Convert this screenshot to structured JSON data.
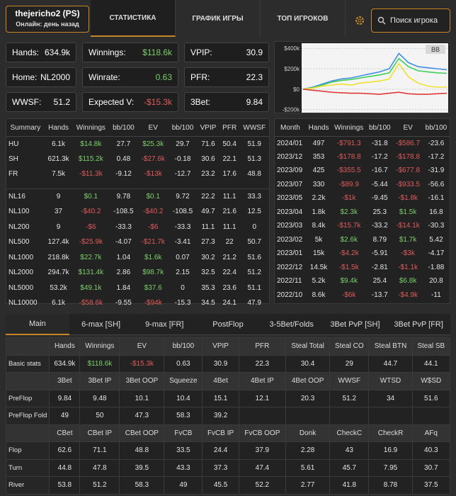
{
  "header": {
    "player_name": "thejericho2 (PS)",
    "status": "Онлайн: день назад",
    "tabs": [
      "СТАТИСТИКА",
      "ГРАФИК ИГРЫ",
      "ТОП ИГРОКОВ"
    ],
    "search": "Поиск игрока"
  },
  "cards": [
    {
      "label": "Hands:",
      "value": "634.9k"
    },
    {
      "label": "Winnings:",
      "value": "$118.6k",
      "color": "#7ccf6a"
    },
    {
      "label": "VPIP:",
      "value": "30.9"
    },
    {
      "label": "Home:",
      "value": "NL2000"
    },
    {
      "label": "Winrate:",
      "value": "0.63",
      "color": "#7ccf6a"
    },
    {
      "label": "PFR:",
      "value": "22.3"
    },
    {
      "label": "WWSF:",
      "value": "51.2"
    },
    {
      "label": "Expected V:",
      "value": "-$15.3k",
      "color": "#e05a5a"
    },
    {
      "label": "3Bet:",
      "value": "9.84"
    }
  ],
  "chart": {
    "button": "BB",
    "ylim": [
      -230000,
      450000
    ],
    "yticks": [
      {
        "value": 400000,
        "label": "$400k"
      },
      {
        "value": 200000,
        "label": "$200k"
      },
      {
        "value": 0,
        "label": "$0"
      },
      {
        "value": -200000,
        "label": "-$200k"
      }
    ],
    "series": [
      {
        "color": "#3f8fe0",
        "values": [
          0,
          20000,
          50000,
          80000,
          100000,
          110000,
          130000,
          150000,
          170000,
          200000,
          350000,
          260000,
          220000,
          210000,
          200000,
          190000
        ]
      },
      {
        "color": "#3fcf5a",
        "values": [
          0,
          15000,
          40000,
          70000,
          85000,
          95000,
          110000,
          125000,
          140000,
          160000,
          300000,
          220000,
          180000,
          170000,
          160000,
          155000
        ]
      },
      {
        "color": "#f0e030",
        "values": [
          0,
          10000,
          30000,
          40000,
          50000,
          40000,
          60000,
          70000,
          80000,
          100000,
          250000,
          120000,
          60000,
          30000,
          20000,
          20000
        ]
      },
      {
        "color": "#e03a3a",
        "values": [
          0,
          -10000,
          -20000,
          -30000,
          -35000,
          -40000,
          -40000,
          -45000,
          -50000,
          -40000,
          -30000,
          -45000,
          -50000,
          -50000,
          -45000,
          -40000
        ]
      }
    ]
  },
  "summary": {
    "headers": [
      "Summary",
      "Hands",
      "Winnings",
      "bb/100",
      "EV",
      "bb/100",
      "VPIP",
      "PFR",
      "WWSF"
    ],
    "groups": [
      [
        [
          "HU",
          "6.1k",
          "$14.8k",
          "27.7",
          "$25.3k",
          "29.7",
          "71.6",
          "50.4",
          "51.9"
        ],
        [
          "SH",
          "621.3k",
          "$115.2k",
          "0.48",
          "-$27.6k",
          "-0.18",
          "30.6",
          "22.1",
          "51.3"
        ],
        [
          "FR",
          "7.5k",
          "-$11.3k",
          "-9.12",
          "-$13k",
          "-12.7",
          "23.2",
          "17.6",
          "48.8"
        ]
      ],
      [
        [
          "NL16",
          "9",
          "$0.1",
          "9.78",
          "$0.1",
          "9.72",
          "22.2",
          "11.1",
          "33.3"
        ],
        [
          "NL100",
          "37",
          "-$40.2",
          "-108.5",
          "-$40.2",
          "-108.5",
          "49.7",
          "21.6",
          "12.5"
        ],
        [
          "NL200",
          "9",
          "-$6",
          "-33.3",
          "-$6",
          "-33.3",
          "11.1",
          "11.1",
          "0"
        ],
        [
          "NL500",
          "127.4k",
          "-$25.9k",
          "-4.07",
          "-$21.7k",
          "-3.41",
          "27.3",
          "22",
          "50.7"
        ],
        [
          "NL1000",
          "218.8k",
          "$22.7k",
          "1.04",
          "$1.6k",
          "0.07",
          "30.2",
          "21.2",
          "51.6"
        ],
        [
          "NL2000",
          "294.7k",
          "$131.4k",
          "2.86",
          "$98.7k",
          "2.15",
          "32.5",
          "22.4",
          "51.2"
        ],
        [
          "NL5000",
          "53.2k",
          "$49.1k",
          "1.84",
          "$37.6",
          "0",
          "35.3",
          "23.6",
          "51.1"
        ],
        [
          "NL10000",
          "6.1k",
          "-$58.6k",
          "-9.55",
          "-$94k",
          "-15.3",
          "34.5",
          "24.1",
          "47.9"
        ]
      ]
    ]
  },
  "monthly": {
    "headers": [
      "Month",
      "Hands",
      "Winnings",
      "bb/100",
      "EV",
      "bb/100"
    ],
    "rows": [
      [
        "2024/01",
        "497",
        "-$791.3",
        "-31.8",
        "-$586.7",
        "-23.6"
      ],
      [
        "2023/12",
        "353",
        "-$178.8",
        "-17.2",
        "-$178.8",
        "-17.2"
      ],
      [
        "2023/09",
        "425",
        "-$355.5",
        "-16.7",
        "-$677.8",
        "-31.9"
      ],
      [
        "2023/07",
        "330",
        "-$89.9",
        "-5.44",
        "-$933.5",
        "-56.6"
      ],
      [
        "2023/05",
        "2.2k",
        "-$1k",
        "-9.45",
        "-$1.8k",
        "-16.1"
      ],
      [
        "2023/04",
        "1.8k",
        "$2.3k",
        "25.3",
        "$1.5k",
        "16.8"
      ],
      [
        "2023/03",
        "8.4k",
        "-$15.7k",
        "-33.2",
        "-$14.1k",
        "-30.3"
      ],
      [
        "2023/02",
        "5k",
        "$2.6k",
        "8.79",
        "$1.7k",
        "5.42"
      ],
      [
        "2023/01",
        "15k",
        "-$4.2k",
        "-5.91",
        "-$3k",
        "-4.17"
      ],
      [
        "2022/12",
        "14.5k",
        "-$1.5k",
        "-2.81",
        "-$1.1k",
        "-1.88"
      ],
      [
        "2022/11",
        "5.2k",
        "$9.4k",
        "25.4",
        "$6.8k",
        "20.8"
      ],
      [
        "2022/10",
        "8.6k",
        "-$6k",
        "-13.7",
        "-$4.9k",
        "-11"
      ]
    ]
  },
  "details": {
    "tabs": [
      "Main",
      "6-max [SH]",
      "9-max [FR]",
      "PostFlop",
      "3-5Bet/Folds",
      "3Bet PvP [SH]",
      "3Bet PvP [FR]"
    ],
    "sections": [
      {
        "headers": [
          "Hands",
          "Winnings",
          "EV",
          "bb/100",
          "VPIP",
          "PFR",
          "Steal Total",
          "Steal CO",
          "Steal BTN",
          "Steal SB"
        ],
        "rows": [
          {
            "label": "Basic stats",
            "values": [
              "634.9k",
              "$118.6k",
              "-$15.3k",
              "0.63",
              "30.9",
              "22.3",
              "30.4",
              "29",
              "44.7",
              "44.1"
            ]
          }
        ]
      },
      {
        "headers": [
          "3Bet",
          "3Bet IP",
          "3Bet OOP",
          "Squeeze",
          "4Bet",
          "4Bet IP",
          "4Bet OOP",
          "WWSF",
          "WTSD",
          "W$SD"
        ],
        "rows": [
          {
            "label": "PreFlop",
            "values": [
              "9.84",
              "9.48",
              "10.1",
              "10.4",
              "15.1",
              "12.1",
              "20.3",
              "51.2",
              "34",
              "51.6"
            ]
          },
          {
            "label": "PreFlop Fold",
            "values": [
              "49",
              "50",
              "47.3",
              "58.3",
              "39.2"
            ]
          }
        ]
      },
      {
        "headers": [
          "CBet",
          "CBet IP",
          "CBet OOP",
          "FvCB",
          "FvCB IP",
          "FvCB OOP",
          "Donk",
          "CheckC",
          "CheckR",
          "AFq"
        ],
        "rows": [
          {
            "label": "Flop",
            "values": [
              "62.6",
              "71.1",
              "48.8",
              "33.5",
              "24.4",
              "37.9",
              "2.28",
              "43",
              "16.9",
              "40.3"
            ]
          },
          {
            "label": "Turn",
            "values": [
              "44.8",
              "47.8",
              "39.5",
              "43.3",
              "37.3",
              "47.4",
              "5.61",
              "45.7",
              "7.95",
              "30.7"
            ]
          },
          {
            "label": "River",
            "values": [
              "53.8",
              "51.2",
              "58.3",
              "49",
              "45.5",
              "52.2",
              "2.77",
              "41.8",
              "8.78",
              "37.5"
            ]
          }
        ]
      }
    ]
  }
}
